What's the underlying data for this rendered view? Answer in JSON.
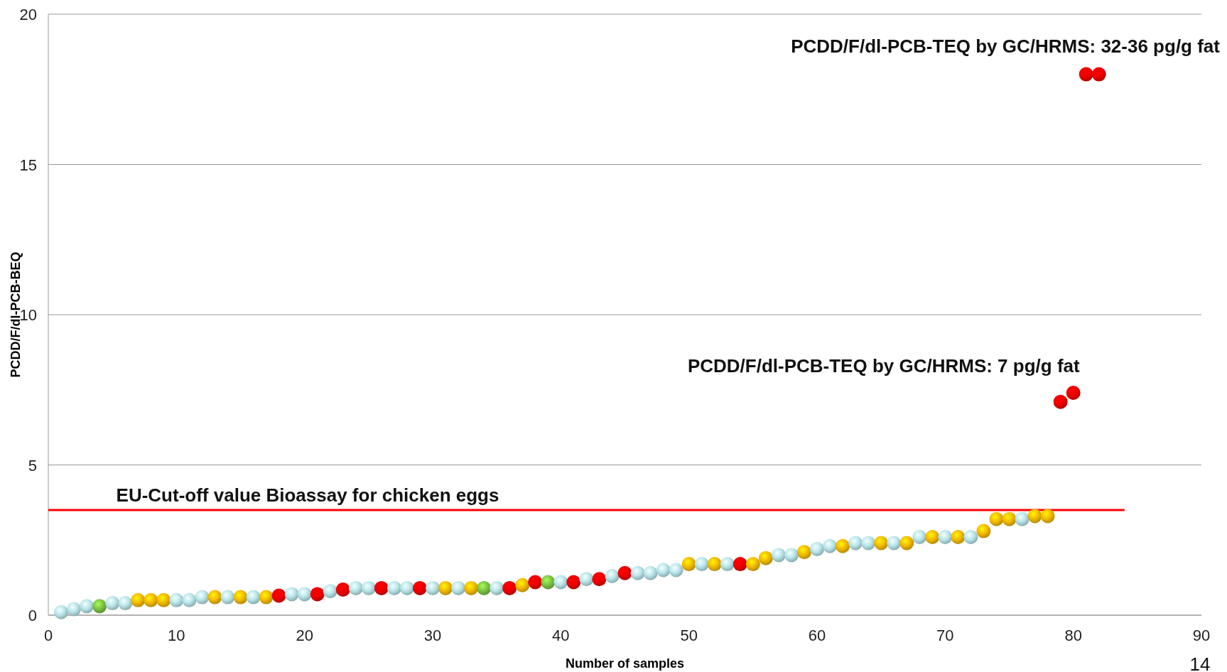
{
  "chart_data": {
    "type": "scatter",
    "xlabel": "Number of samples",
    "ylabel": "PCDD/F/dl-PCB-BEQ",
    "x": [
      1,
      2,
      3,
      4,
      5,
      6,
      7,
      8,
      9,
      10,
      11,
      12,
      13,
      14,
      15,
      16,
      17,
      18,
      19,
      20,
      21,
      22,
      23,
      24,
      25,
      26,
      27,
      28,
      29,
      30,
      31,
      32,
      33,
      34,
      35,
      36,
      37,
      38,
      39,
      40,
      41,
      42,
      43,
      44,
      45,
      46,
      47,
      48,
      49,
      50,
      51,
      52,
      53,
      54,
      55,
      56,
      57,
      58,
      59,
      60,
      61,
      62,
      63,
      64,
      65,
      66,
      67,
      68,
      69,
      70,
      71,
      72,
      73,
      74,
      75,
      76,
      77,
      78,
      79,
      80,
      81,
      82
    ],
    "values": [
      0.1,
      0.2,
      0.3,
      0.3,
      0.4,
      0.4,
      0.5,
      0.5,
      0.5,
      0.5,
      0.5,
      0.6,
      0.6,
      0.6,
      0.6,
      0.6,
      0.6,
      0.65,
      0.7,
      0.7,
      0.7,
      0.8,
      0.85,
      0.9,
      0.9,
      0.9,
      0.9,
      0.9,
      0.9,
      0.9,
      0.9,
      0.9,
      0.9,
      0.9,
      0.9,
      0.9,
      1.0,
      1.1,
      1.1,
      1.1,
      1.1,
      1.2,
      1.2,
      1.3,
      1.4,
      1.4,
      1.4,
      1.5,
      1.5,
      1.7,
      1.7,
      1.7,
      1.7,
      1.7,
      1.7,
      1.9,
      2.0,
      2.0,
      2.1,
      2.2,
      2.3,
      2.3,
      2.4,
      2.4,
      2.4,
      2.4,
      2.4,
      2.6,
      2.6,
      2.6,
      2.6,
      2.6,
      2.8,
      3.2,
      3.2,
      3.2,
      3.3,
      3.3,
      7.1,
      7.4,
      18,
      18
    ],
    "colors": [
      "#b7e4e8",
      "#b7e4e8",
      "#b7e4e8",
      "#7cc242",
      "#b7e4e8",
      "#b7e4e8",
      "#f2b900",
      "#f2b900",
      "#f2b900",
      "#b7e4e8",
      "#b7e4e8",
      "#b7e4e8",
      "#f2b900",
      "#b7e4e8",
      "#f2b900",
      "#b7e4e8",
      "#f2b900",
      "#ee0000",
      "#b7e4e8",
      "#b7e4e8",
      "#ee0000",
      "#b7e4e8",
      "#ee0000",
      "#b7e4e8",
      "#b7e4e8",
      "#ee0000",
      "#b7e4e8",
      "#b7e4e8",
      "#ee0000",
      "#b7e4e8",
      "#f2b900",
      "#b7e4e8",
      "#f2b900",
      "#7cc242",
      "#b7e4e8",
      "#ee0000",
      "#f2b900",
      "#ee0000",
      "#7cc242",
      "#b7e4e8",
      "#ee0000",
      "#b7e4e8",
      "#ee0000",
      "#b7e4e8",
      "#ee0000",
      "#b7e4e8",
      "#b7e4e8",
      "#b7e4e8",
      "#b7e4e8",
      "#f2b900",
      "#b7e4e8",
      "#f2b900",
      "#b7e4e8",
      "#ee0000",
      "#f2b900",
      "#f2b900",
      "#b7e4e8",
      "#b7e4e8",
      "#f2b900",
      "#b7e4e8",
      "#b7e4e8",
      "#f2b900",
      "#b7e4e8",
      "#b7e4e8",
      "#f2b900",
      "#b7e4e8",
      "#f2b900",
      "#b7e4e8",
      "#f2b900",
      "#b7e4e8",
      "#f2b900",
      "#b7e4e8",
      "#f2b900",
      "#f2b900",
      "#f2b900",
      "#b7e4e8",
      "#f2b900",
      "#f2b900",
      "#ee0000",
      "#ee0000",
      "#ee0000",
      "#ee0000"
    ],
    "marker": "circle",
    "xlim": [
      0,
      90
    ],
    "xticks": [
      0,
      10,
      20,
      30,
      40,
      50,
      60,
      70,
      80,
      90
    ],
    "ylim": [
      0,
      20
    ],
    "yticks": [
      0,
      5,
      10,
      15,
      20
    ],
    "grid": "y",
    "ref_lines": [
      {
        "axis": "y",
        "value": 3.5,
        "label": "EU-Cut-off value Bioassay for chicken eggs",
        "color": "#ff0000"
      }
    ],
    "annotations": [
      "PCDD/F/dl-PCB-TEQ by GC/HRMS: 32-36 pg/g fat",
      "PCDD/F/dl-PCB-TEQ by GC/HRMS: 7 pg/g fat",
      "14"
    ]
  }
}
